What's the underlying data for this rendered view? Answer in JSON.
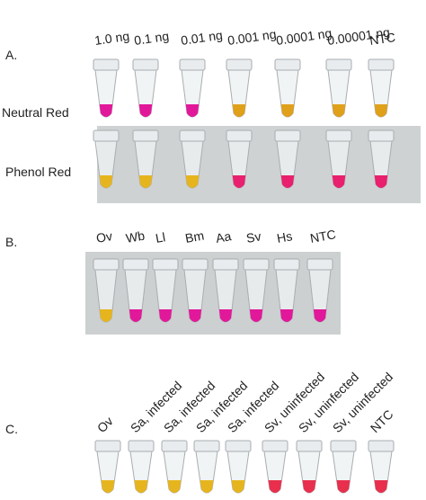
{
  "panels": [
    {
      "label": "A.",
      "columns": [
        "1.0 ng",
        "0.1 ng",
        "0.01 ng",
        "0.001 ng",
        "0.0001 ng",
        "0.00001 ng",
        "NTC"
      ],
      "rows": [
        "Neutral Red",
        "Phenol Red"
      ]
    },
    {
      "label": "B.",
      "columns": [
        "Ov",
        "Wb",
        "Ll",
        "Bm",
        "Aa",
        "Sv",
        "Hs",
        "NTC"
      ]
    },
    {
      "label": "C.",
      "columns": [
        "Ov",
        "Sa, infected",
        "Sa, infected",
        "Sa, infected",
        "Sa, infected",
        "Sv, uninfected",
        "Sv, uninfected",
        "Sv, uninfected",
        "NTC"
      ]
    }
  ]
}
